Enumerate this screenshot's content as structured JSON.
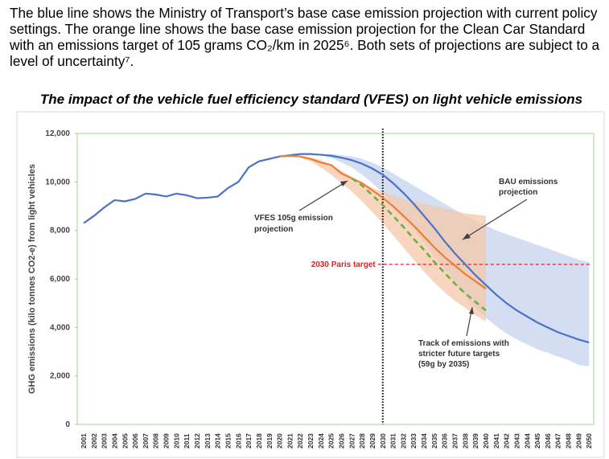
{
  "text": "The blue line shows the Ministry of Transport’s base case emission projection with current policy settings. The orange line shows the base case emission projection for the Clean Car Standard with an emissions target of 105 grams CO₂/km in 2025⁶. Both sets of projections are subject to a level of uncertainty⁷.",
  "chart_data": {
    "type": "line",
    "title": "The impact of the vehicle fuel efficiency standard (VFES) on light vehicle emissions",
    "y_label": "GHG emissions (kilo tonnes CO2-e) from light vehicles",
    "categories": [
      "2001",
      "2002",
      "2003",
      "2004",
      "2005",
      "2006",
      "2007",
      "2008",
      "2009",
      "2010",
      "2011",
      "2012",
      "2013",
      "2014",
      "2015",
      "2016",
      "2017",
      "2018",
      "2019",
      "2020",
      "2021",
      "2022",
      "2023",
      "2024",
      "2025",
      "2026",
      "2027",
      "2028",
      "2029",
      "2030",
      "2031",
      "2032",
      "2033",
      "2034",
      "2035",
      "2036",
      "2037",
      "2038",
      "2039",
      "2040",
      "2041",
      "2042",
      "2043",
      "2044",
      "2045",
      "2046",
      "2047",
      "2048",
      "2049",
      "2050"
    ],
    "ylim": [
      0,
      12000
    ],
    "yticks": [
      0,
      {
        "value": 2000,
        "label": "2,000"
      },
      {
        "value": 4000,
        "label": "4,000"
      },
      {
        "value": 6000,
        "label": "6,000"
      },
      {
        "value": 8000,
        "label": "8,000"
      },
      {
        "value": 10000,
        "label": "10,000"
      },
      {
        "value": 12000,
        "label": "12,000"
      }
    ],
    "bands": [
      {
        "color": "#c5d3ef",
        "upper": [
          null,
          null,
          null,
          null,
          null,
          null,
          null,
          null,
          null,
          null,
          null,
          null,
          null,
          null,
          null,
          null,
          null,
          null,
          null,
          null,
          null,
          null,
          null,
          11150,
          11150,
          11100,
          11050,
          10950,
          10800,
          10600,
          10350,
          10100,
          9850,
          9600,
          9350,
          9100,
          8850,
          8600,
          8400,
          8200,
          8000,
          7850,
          7700,
          7550,
          7400,
          7250,
          7100,
          6950,
          6800,
          6700
        ],
        "lower": [
          null,
          null,
          null,
          null,
          null,
          null,
          null,
          null,
          null,
          null,
          null,
          null,
          null,
          null,
          null,
          null,
          null,
          null,
          null,
          null,
          null,
          null,
          null,
          11100,
          11000,
          10800,
          10600,
          10300,
          9950,
          9550,
          9100,
          8600,
          8050,
          7500,
          6950,
          6400,
          5850,
          5300,
          4800,
          4400,
          4050,
          3750,
          3500,
          3300,
          3100,
          2950,
          2800,
          2650,
          2450,
          2400
        ]
      },
      {
        "color": "#f6c7a8",
        "upper": [
          null,
          null,
          null,
          null,
          null,
          null,
          null,
          null,
          null,
          null,
          null,
          null,
          null,
          null,
          null,
          null,
          null,
          null,
          null,
          null,
          null,
          11050,
          11000,
          10900,
          10700,
          10450,
          10200,
          9950,
          9750,
          9600,
          9450,
          9300,
          9200,
          9100,
          9000,
          8900,
          8800,
          8700,
          8650,
          8600,
          null,
          null,
          null,
          null,
          null,
          null,
          null,
          null,
          null,
          null
        ],
        "lower": [
          null,
          null,
          null,
          null,
          null,
          null,
          null,
          null,
          null,
          null,
          null,
          null,
          null,
          null,
          null,
          null,
          null,
          null,
          null,
          null,
          null,
          11000,
          10850,
          10600,
          10300,
          9950,
          9600,
          9200,
          8750,
          8300,
          7800,
          7300,
          6800,
          6300,
          5850,
          5450,
          5100,
          4800,
          4500,
          4250,
          null,
          null,
          null,
          null,
          null,
          null,
          null,
          null,
          null,
          null
        ]
      }
    ],
    "series": [
      {
        "color": "#4a72c4",
        "dash": false,
        "values": [
          8300,
          8600,
          8950,
          9250,
          9200,
          9300,
          9520,
          9480,
          9400,
          9520,
          9450,
          9330,
          9350,
          9400,
          9750,
          10000,
          10600,
          10850,
          10950,
          11050,
          11100,
          11150,
          11150,
          11120,
          11080,
          11000,
          10900,
          10750,
          10550,
          10300,
          9950,
          9550,
          9100,
          8600,
          8100,
          7550,
          7050,
          6600,
          6150,
          5750,
          5350,
          5000,
          4700,
          4450,
          4200,
          4000,
          3800,
          3650,
          3500,
          3380
        ]
      },
      {
        "color": "#ed7d31",
        "dash": false,
        "values": [
          null,
          null,
          null,
          null,
          null,
          null,
          null,
          null,
          null,
          null,
          null,
          null,
          null,
          null,
          null,
          null,
          null,
          null,
          null,
          11050,
          11080,
          11050,
          10950,
          10800,
          10700,
          10350,
          10150,
          9950,
          9650,
          9350,
          9000,
          8600,
          8200,
          7750,
          7300,
          6900,
          6550,
          6200,
          5900,
          5600,
          null,
          null,
          null,
          null,
          null,
          null,
          null,
          null,
          null,
          null
        ]
      },
      {
        "color": "#70ad47",
        "dash": true,
        "values": [
          null,
          null,
          null,
          null,
          null,
          null,
          null,
          null,
          null,
          null,
          null,
          null,
          null,
          null,
          null,
          null,
          null,
          null,
          null,
          null,
          null,
          null,
          null,
          null,
          null,
          null,
          10150,
          9850,
          9450,
          9050,
          8600,
          8150,
          7650,
          7200,
          6700,
          6250,
          5800,
          5400,
          5050,
          4700,
          null,
          null,
          null,
          null,
          null,
          null,
          null,
          null,
          null,
          null
        ]
      }
    ],
    "reference_line": {
      "label": "2030 Paris target",
      "value": 6600,
      "color": "#e0201f"
    },
    "vline": "2030",
    "annotations": [
      "BAU emissions",
      "projection",
      "VFES 105g emission",
      "projection",
      "Track of emissions with",
      "stricter future targets",
      "(59g by 2035)"
    ]
  }
}
